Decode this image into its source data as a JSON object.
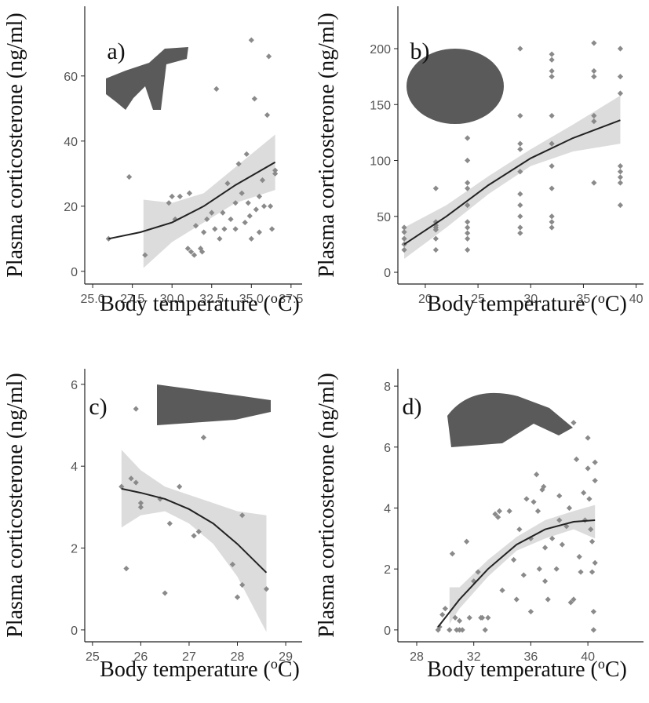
{
  "chart_data": [
    {
      "type": "scatter",
      "panel_label": "a)",
      "ylabel": "Plasma corticosterone (ng/ml)",
      "xlabel": [
        "Body temperature (",
        "o",
        "C)"
      ],
      "xlim": [
        24.5,
        38.2
      ],
      "ylim": [
        -3.9,
        81.4
      ],
      "xticks": [
        {
          "value": 25,
          "label": "25.0"
        },
        27.5,
        {
          "value": 30,
          "label": "30.0"
        },
        32.5,
        {
          "value": 35,
          "label": "35.0"
        },
        37.5
      ],
      "yticks": [
        0,
        20,
        40,
        60
      ],
      "color": "#8a8a8a",
      "x": [
        26,
        27.3,
        28.3,
        29.8,
        30,
        30.2,
        30.5,
        31,
        31.1,
        31.2,
        31.4,
        31.5,
        31.8,
        31.9,
        32,
        32.2,
        32.5,
        32.7,
        32.8,
        33,
        33.2,
        33.3,
        33.5,
        33.7,
        34,
        34,
        34.2,
        34.4,
        34.6,
        34.7,
        34.8,
        35,
        35,
        35.2,
        35.5,
        35.5,
        35.7,
        35.8,
        36,
        36.1,
        36.2,
        36.3,
        36.5,
        36.5,
        35.3,
        34.9
      ],
      "values": [
        10,
        29,
        5,
        21,
        23,
        16,
        23,
        7,
        24,
        6,
        5,
        14,
        7,
        6,
        12,
        16,
        18,
        13,
        56,
        10,
        18,
        13,
        27,
        16,
        21,
        13,
        33,
        24,
        15,
        36,
        21,
        71,
        10,
        53,
        23,
        12,
        28,
        20,
        48,
        66,
        20,
        13,
        30,
        31,
        19,
        17
      ],
      "fit": {
        "x": [
          26,
          28,
          30,
          32,
          34,
          36.5
        ],
        "values": [
          10,
          12,
          15,
          20,
          26.5,
          33.5
        ]
      },
      "band": {
        "x": [
          28.2,
          30,
          32,
          34,
          36.5
        ],
        "lower": [
          1,
          9,
          15,
          21,
          25
        ],
        "upper": [
          22,
          21,
          24,
          32,
          42
        ]
      }
    },
    {
      "type": "scatter",
      "panel_label": "b)",
      "ylabel": "Plasma corticosterone (ng/ml)",
      "xlabel": [
        "Body temperature (",
        "o",
        "C)"
      ],
      "xlim": [
        17.4,
        40.7
      ],
      "ylim": [
        -10.5,
        237.9
      ],
      "xticks": [
        20,
        25,
        30,
        35,
        40
      ],
      "yticks": [
        0,
        50,
        100,
        150,
        200
      ],
      "color": "#8a8a8a",
      "x": [
        18,
        18,
        18,
        18,
        18,
        21,
        21,
        21,
        21,
        21,
        21,
        21,
        24,
        24,
        24,
        24,
        24,
        24,
        24,
        24,
        24,
        24,
        29,
        29,
        29,
        29,
        29,
        29,
        29,
        29,
        29,
        29,
        32,
        32,
        32,
        32,
        32,
        32,
        32,
        32,
        32,
        32,
        32,
        36,
        36,
        36,
        36,
        36,
        36,
        38.5,
        38.5,
        38.5,
        38.5,
        38.5,
        38.5,
        38.5,
        38.5
      ],
      "values": [
        40,
        36,
        30,
        25,
        20,
        75,
        45,
        40,
        38,
        30,
        20,
        42,
        120,
        100,
        80,
        75,
        60,
        45,
        40,
        30,
        20,
        35,
        200,
        140,
        115,
        110,
        90,
        70,
        60,
        40,
        35,
        50,
        195,
        190,
        180,
        175,
        140,
        115,
        95,
        75,
        50,
        45,
        40,
        205,
        180,
        175,
        140,
        135,
        80,
        200,
        175,
        160,
        95,
        90,
        85,
        80,
        60
      ],
      "fit": {
        "x": [
          18,
          22,
          26,
          30,
          34,
          38.5
        ],
        "values": [
          25,
          50,
          78,
          102,
          120,
          136
        ]
      },
      "band": {
        "x": [
          18,
          22,
          26,
          30,
          34,
          38.5
        ],
        "lower": [
          12,
          40,
          70,
          95,
          108,
          115
        ],
        "upper": [
          40,
          60,
          86,
          110,
          132,
          158
        ]
      }
    },
    {
      "type": "scatter",
      "panel_label": "c)",
      "ylabel": "Plasma corticosterone (ng/ml)",
      "xlabel": [
        "Body temperature (",
        "o",
        "C)"
      ],
      "xlim": [
        24.84,
        29.34
      ],
      "ylim": [
        -0.29,
        6.38
      ],
      "xticks": [
        25,
        26,
        27,
        28,
        29
      ],
      "yticks": [
        0,
        2,
        4,
        6
      ],
      "color": "#8a8a8a",
      "x": [
        25.6,
        25.7,
        25.8,
        25.9,
        25.9,
        26,
        26,
        26.4,
        26.5,
        26.6,
        26.8,
        27.1,
        27.3,
        27.2,
        27.9,
        28,
        28.1,
        28.1,
        28.6
      ],
      "values": [
        3.5,
        1.5,
        3.7,
        5.4,
        3.6,
        3.1,
        3.0,
        3.2,
        0.9,
        2.6,
        3.5,
        2.3,
        4.7,
        2.4,
        1.6,
        0.8,
        2.8,
        1.1,
        1.0
      ],
      "fit": {
        "x": [
          25.6,
          26,
          26.5,
          27,
          27.5,
          28,
          28.6
        ],
        "values": [
          3.45,
          3.35,
          3.2,
          2.95,
          2.6,
          2.1,
          1.4
        ]
      },
      "band": {
        "x": [
          25.6,
          26,
          26.5,
          27,
          27.5,
          28,
          28.6
        ],
        "lower": [
          2.5,
          2.8,
          2.9,
          2.6,
          2.1,
          1.3,
          -0.05
        ],
        "upper": [
          4.4,
          3.9,
          3.5,
          3.3,
          3.1,
          2.9,
          2.8
        ]
      }
    },
    {
      "type": "scatter",
      "panel_label": "d)",
      "ylabel": "Plasma corticosterone (ng/ml)",
      "xlabel": [
        "Body temperature (",
        "o",
        "C)"
      ],
      "xlim": [
        26.68,
        43.9
      ],
      "ylim": [
        -0.39,
        8.57
      ],
      "xticks": [
        28,
        32,
        36,
        40
      ],
      "yticks": [
        0,
        2,
        4,
        6,
        8
      ],
      "color": "#8a8a8a",
      "x": [
        29.5,
        29.6,
        29.8,
        30,
        30.3,
        30.5,
        30.7,
        30.8,
        31,
        31,
        31.2,
        31.5,
        31.7,
        32,
        32.3,
        32.5,
        32.6,
        32.8,
        33.5,
        33.7,
        33.8,
        34,
        34.5,
        34.8,
        35,
        35.2,
        35.5,
        35.7,
        36,
        36.2,
        36.4,
        36.5,
        36.6,
        36.8,
        36.9,
        37,
        37,
        37.2,
        37.5,
        37.8,
        38,
        38,
        38.2,
        38.5,
        38.7,
        38.8,
        39,
        39.2,
        39.4,
        39.5,
        39.7,
        39.8,
        40,
        40,
        40.1,
        40.2,
        40.3,
        40.3,
        40.4,
        40.4,
        40.5,
        40.5,
        40.5,
        39,
        36,
        33
      ],
      "values": [
        0,
        0.1,
        0.5,
        0.7,
        0,
        2.5,
        0.4,
        0,
        0,
        0.3,
        0,
        2.9,
        0.4,
        1.6,
        1.9,
        0.4,
        0.4,
        0,
        3.8,
        3.7,
        3.9,
        1.3,
        3.9,
        2.3,
        1.0,
        3.3,
        1.8,
        4.3,
        3.0,
        4.2,
        5.1,
        3.9,
        2.0,
        4.6,
        4.7,
        2.7,
        1.6,
        1.0,
        3.0,
        2.0,
        4.4,
        3.6,
        2.8,
        3.4,
        4.0,
        0.9,
        6.8,
        5.6,
        2.4,
        1.9,
        4.5,
        3.6,
        6.3,
        5.3,
        4.3,
        3.3,
        2.9,
        1.9,
        0.6,
        0.0,
        4.9,
        2.2,
        5.5,
        1.0,
        0.6,
        0.4
      ],
      "fit": {
        "x": [
          29.5,
          31,
          33,
          35,
          37,
          39,
          40.5
        ],
        "values": [
          0.1,
          1.0,
          2.0,
          2.8,
          3.3,
          3.55,
          3.6
        ]
      },
      "band": {
        "x": [
          30.3,
          31,
          33,
          35,
          37,
          39,
          40.5
        ],
        "lower": [
          0.2,
          0.7,
          1.75,
          2.6,
          3.0,
          3.3,
          3.0
        ],
        "upper": [
          1.4,
          1.4,
          2.3,
          3.05,
          3.6,
          3.9,
          4.1
        ]
      }
    }
  ]
}
